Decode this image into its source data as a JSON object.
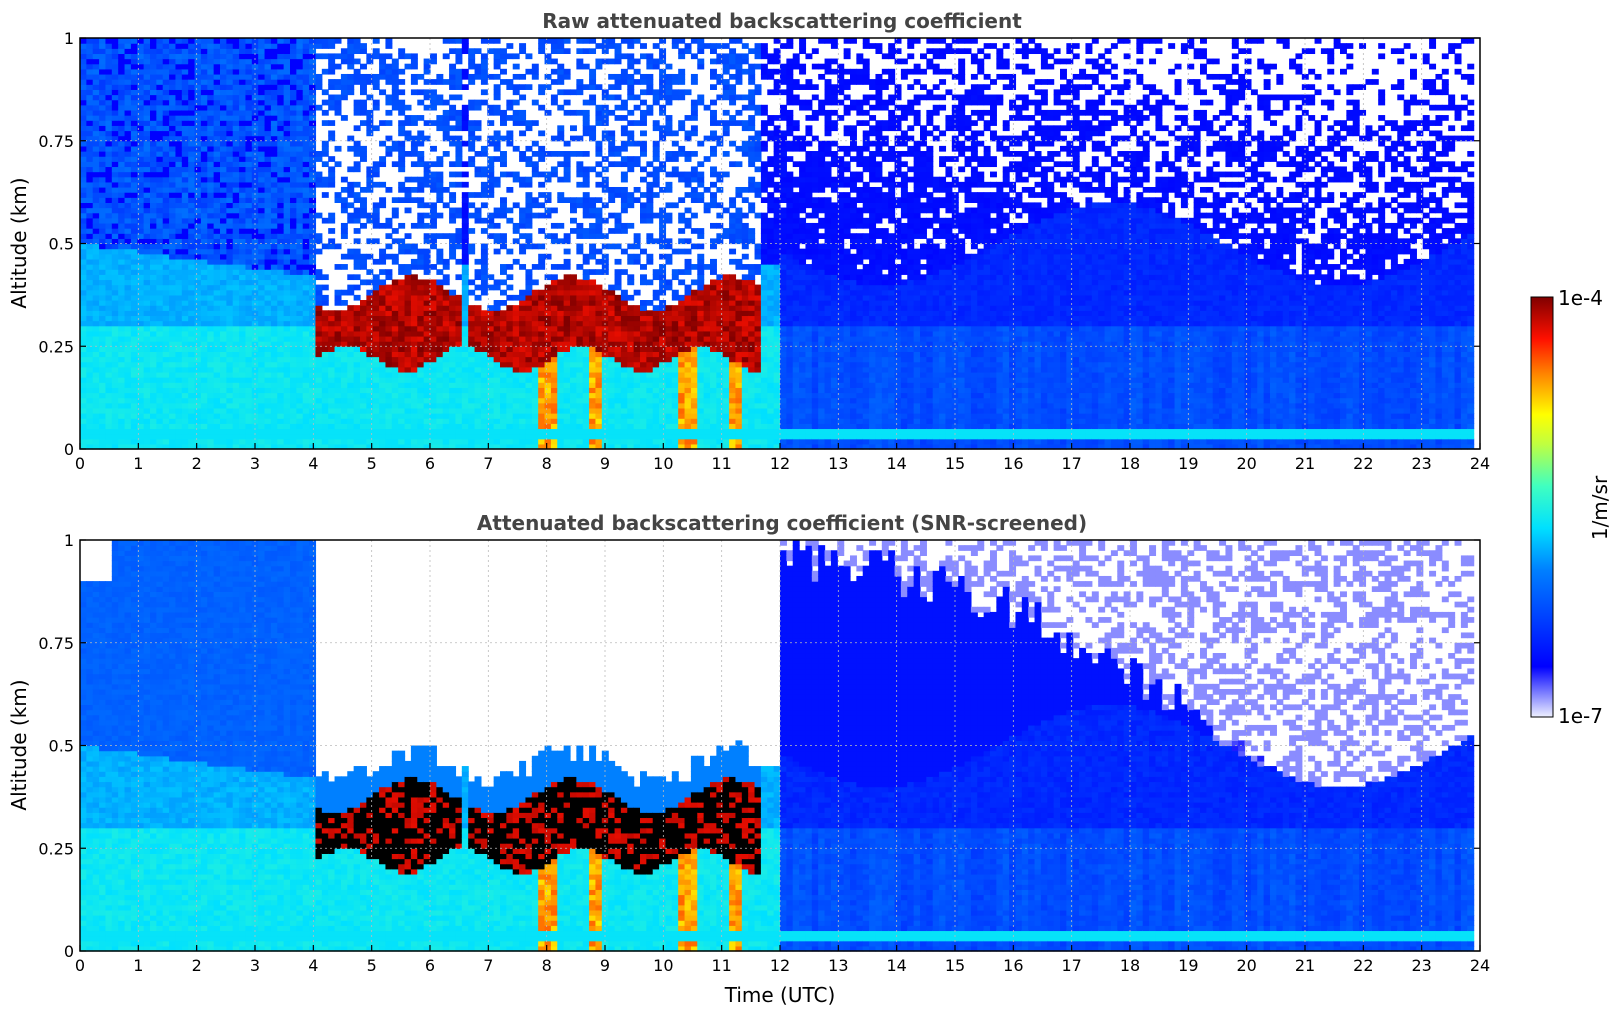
{
  "chart_data": [
    {
      "type": "heatmap",
      "title": "Raw attenuated backscattering coefficient",
      "xlabel": "",
      "ylabel": "Altitude (km)",
      "xlim": [
        0,
        24
      ],
      "ylim": [
        0,
        1
      ],
      "x_ticks": [
        "0",
        "1",
        "2",
        "3",
        "4",
        "5",
        "6",
        "7",
        "8",
        "9",
        "10",
        "11",
        "12",
        "13",
        "14",
        "15",
        "16",
        "17",
        "18",
        "19",
        "20",
        "21",
        "22",
        "23",
        "24"
      ],
      "y_ticks": [
        "0",
        "0.25",
        "0.5",
        "0.75",
        "1"
      ],
      "grid": true,
      "screened": false
    },
    {
      "type": "heatmap",
      "title": "Attenuated backscattering coefficient (SNR-screened)",
      "xlabel": "Time (UTC)",
      "ylabel": "Altitude (km)",
      "xlim": [
        0,
        24
      ],
      "ylim": [
        0,
        1
      ],
      "x_ticks": [
        "0",
        "1",
        "2",
        "3",
        "4",
        "5",
        "6",
        "7",
        "8",
        "9",
        "10",
        "11",
        "12",
        "13",
        "14",
        "15",
        "16",
        "17",
        "18",
        "19",
        "20",
        "21",
        "22",
        "23",
        "24"
      ],
      "y_ticks": [
        "0",
        "0.25",
        "0.5",
        "0.75",
        "1"
      ],
      "grid": true,
      "screened": true
    }
  ],
  "colorbar": {
    "label": "1/m/sr",
    "max_label": "1e-4",
    "min_label": "1e-7",
    "scale": "log",
    "colormap": "jet"
  },
  "features": {
    "cloud_layer_altitude_km": [
      0.22,
      0.4
    ],
    "cloud_time_range_utc": [
      4.0,
      11.7
    ],
    "aerosol_layer_top_km": 0.5
  }
}
